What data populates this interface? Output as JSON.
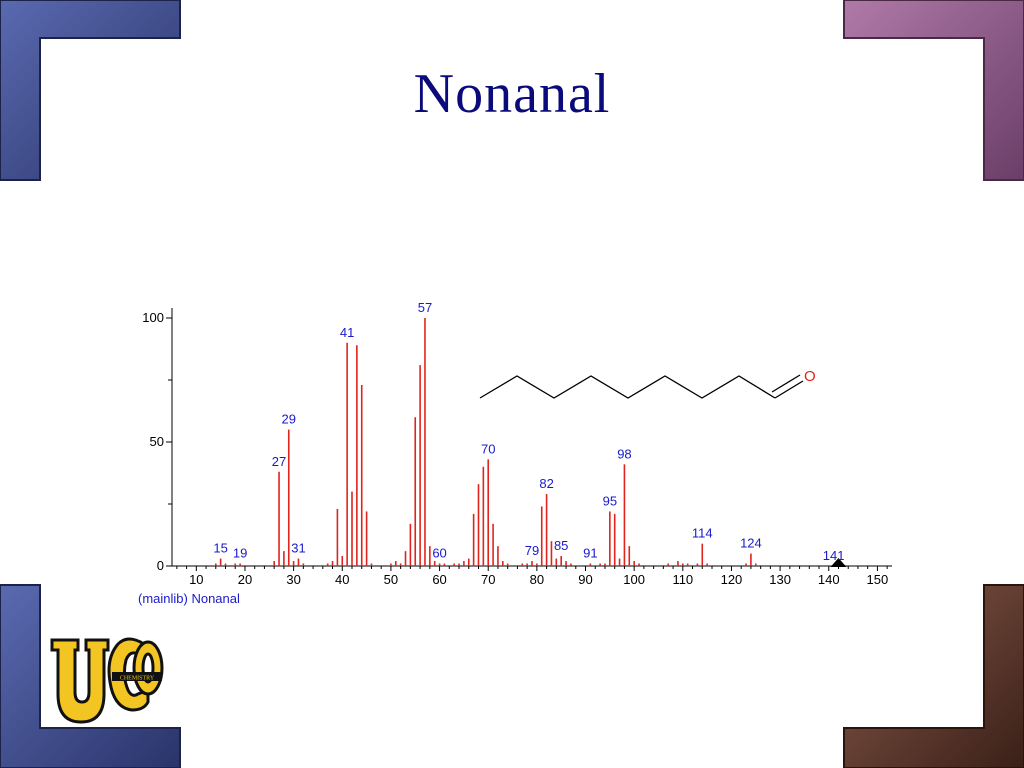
{
  "slide": {
    "title": "Nonanal",
    "accent_colors": {
      "corner_blue": "#3a4a8c",
      "corner_purple": "#9a5f94",
      "corner_brown": "#6a3e30"
    }
  },
  "structure": {
    "atom_label": "O",
    "icon": "nonanal-skeletal-formula"
  },
  "logo": {
    "icon": "uco-chemistry-logo",
    "text": "UCO",
    "subtext": "CHEMISTRY",
    "colors": {
      "gold": "#f2c522",
      "dark": "#111111"
    }
  },
  "chart_data": {
    "type": "bar",
    "title": "",
    "xlabel": "",
    "ylabel": "",
    "library_label": "(mainlib) Nonanal",
    "xlim": [
      5,
      153
    ],
    "ylim": [
      0,
      100
    ],
    "x_ticks": [
      10,
      20,
      30,
      40,
      50,
      60,
      70,
      80,
      90,
      100,
      110,
      120,
      130,
      140,
      150
    ],
    "y_ticks": [
      0,
      50,
      100
    ],
    "bar_color": "#e0231c",
    "label_color": "#1a1acc",
    "peaks": [
      {
        "x": 14,
        "y": 1
      },
      {
        "x": 15,
        "y": 3
      },
      {
        "x": 16,
        "y": 1
      },
      {
        "x": 18,
        "y": 1
      },
      {
        "x": 19,
        "y": 1
      },
      {
        "x": 26,
        "y": 2
      },
      {
        "x": 27,
        "y": 38
      },
      {
        "x": 28,
        "y": 6
      },
      {
        "x": 29,
        "y": 55
      },
      {
        "x": 30,
        "y": 2
      },
      {
        "x": 31,
        "y": 3
      },
      {
        "x": 32,
        "y": 1
      },
      {
        "x": 37,
        "y": 1
      },
      {
        "x": 38,
        "y": 2
      },
      {
        "x": 39,
        "y": 23
      },
      {
        "x": 40,
        "y": 4
      },
      {
        "x": 41,
        "y": 90
      },
      {
        "x": 42,
        "y": 30
      },
      {
        "x": 43,
        "y": 89
      },
      {
        "x": 44,
        "y": 73
      },
      {
        "x": 45,
        "y": 22
      },
      {
        "x": 46,
        "y": 1
      },
      {
        "x": 50,
        "y": 1
      },
      {
        "x": 51,
        "y": 2
      },
      {
        "x": 52,
        "y": 1
      },
      {
        "x": 53,
        "y": 6
      },
      {
        "x": 54,
        "y": 17
      },
      {
        "x": 55,
        "y": 60
      },
      {
        "x": 56,
        "y": 81
      },
      {
        "x": 57,
        "y": 100
      },
      {
        "x": 58,
        "y": 8
      },
      {
        "x": 59,
        "y": 2
      },
      {
        "x": 60,
        "y": 1
      },
      {
        "x": 61,
        "y": 1
      },
      {
        "x": 63,
        "y": 1
      },
      {
        "x": 64,
        "y": 1
      },
      {
        "x": 65,
        "y": 2
      },
      {
        "x": 66,
        "y": 3
      },
      {
        "x": 67,
        "y": 21
      },
      {
        "x": 68,
        "y": 33
      },
      {
        "x": 69,
        "y": 40
      },
      {
        "x": 70,
        "y": 43
      },
      {
        "x": 71,
        "y": 17
      },
      {
        "x": 72,
        "y": 8
      },
      {
        "x": 73,
        "y": 2
      },
      {
        "x": 74,
        "y": 1
      },
      {
        "x": 77,
        "y": 1
      },
      {
        "x": 78,
        "y": 1
      },
      {
        "x": 79,
        "y": 2
      },
      {
        "x": 80,
        "y": 1
      },
      {
        "x": 81,
        "y": 24
      },
      {
        "x": 82,
        "y": 29
      },
      {
        "x": 83,
        "y": 10
      },
      {
        "x": 84,
        "y": 3
      },
      {
        "x": 85,
        "y": 4
      },
      {
        "x": 86,
        "y": 2
      },
      {
        "x": 87,
        "y": 1
      },
      {
        "x": 91,
        "y": 1
      },
      {
        "x": 93,
        "y": 1
      },
      {
        "x": 94,
        "y": 1
      },
      {
        "x": 95,
        "y": 22
      },
      {
        "x": 96,
        "y": 21
      },
      {
        "x": 97,
        "y": 3
      },
      {
        "x": 98,
        "y": 41
      },
      {
        "x": 99,
        "y": 8
      },
      {
        "x": 100,
        "y": 2
      },
      {
        "x": 101,
        "y": 1
      },
      {
        "x": 107,
        "y": 1
      },
      {
        "x": 109,
        "y": 2
      },
      {
        "x": 110,
        "y": 1
      },
      {
        "x": 111,
        "y": 1
      },
      {
        "x": 113,
        "y": 1
      },
      {
        "x": 114,
        "y": 9
      },
      {
        "x": 115,
        "y": 1
      },
      {
        "x": 123,
        "y": 1
      },
      {
        "x": 124,
        "y": 5
      },
      {
        "x": 125,
        "y": 1
      }
    ],
    "peak_labels": [
      {
        "x": 15,
        "text": "15"
      },
      {
        "x": 19,
        "text": "19"
      },
      {
        "x": 27,
        "text": "27"
      },
      {
        "x": 29,
        "text": "29"
      },
      {
        "x": 31,
        "text": "31"
      },
      {
        "x": 41,
        "text": "41"
      },
      {
        "x": 57,
        "text": "57"
      },
      {
        "x": 60,
        "text": "60"
      },
      {
        "x": 70,
        "text": "70"
      },
      {
        "x": 79,
        "text": "79"
      },
      {
        "x": 82,
        "text": "82"
      },
      {
        "x": 85,
        "text": "85"
      },
      {
        "x": 91,
        "text": "91"
      },
      {
        "x": 95,
        "text": "95"
      },
      {
        "x": 98,
        "text": "98"
      },
      {
        "x": 114,
        "text": "114"
      },
      {
        "x": 124,
        "text": "124"
      },
      {
        "x": 141,
        "text": "141"
      }
    ],
    "molecular_ion_marker": {
      "x": 142,
      "icon": "triangle-marker"
    }
  }
}
